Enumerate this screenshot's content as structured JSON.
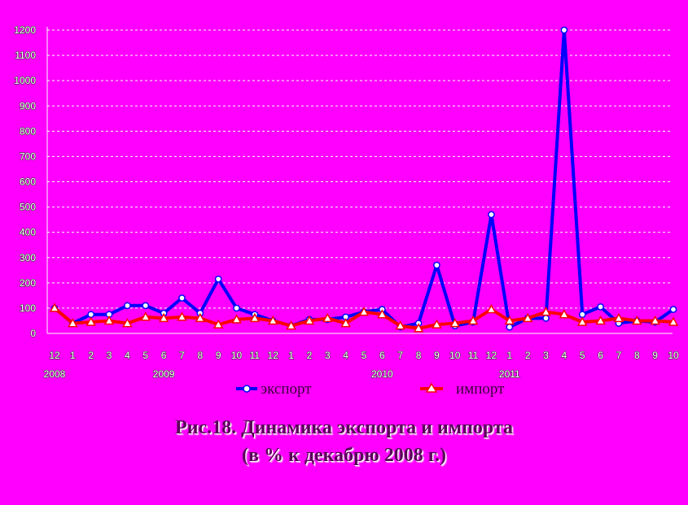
{
  "chart_data": {
    "type": "line",
    "ylim": [
      0,
      1200
    ],
    "yticks": [
      0,
      100,
      200,
      300,
      400,
      500,
      600,
      700,
      800,
      900,
      1000,
      1100,
      1200
    ],
    "x": [
      "12",
      "1",
      "2",
      "3",
      "4",
      "5",
      "6",
      "7",
      "8",
      "9",
      "10",
      "11",
      "12",
      "1",
      "2",
      "3",
      "4",
      "5",
      "6",
      "7",
      "8",
      "9",
      "10",
      "11",
      "12",
      "1",
      "2",
      "3",
      "4",
      "5",
      "6",
      "7",
      "8",
      "9",
      "10"
    ],
    "years": [
      {
        "label": "2008",
        "index": 0
      },
      {
        "label": "2009",
        "index": 6
      },
      {
        "label": "2010",
        "index": 18
      },
      {
        "label": "2011",
        "index": 25
      }
    ],
    "series": [
      {
        "name": "экспорт",
        "color": "#0000ff",
        "marker": "circle",
        "values": [
          100,
          40,
          75,
          75,
          110,
          110,
          80,
          140,
          80,
          215,
          100,
          75,
          50,
          30,
          55,
          55,
          65,
          85,
          95,
          25,
          40,
          270,
          30,
          45,
          470,
          25,
          60,
          60,
          1200,
          75,
          105,
          40,
          50,
          45,
          95
        ]
      },
      {
        "name": "импорт",
        "color": "#ff0000",
        "marker": "triangle",
        "values": [
          100,
          40,
          45,
          50,
          40,
          65,
          60,
          65,
          60,
          35,
          55,
          60,
          50,
          30,
          50,
          60,
          40,
          85,
          75,
          30,
          20,
          35,
          40,
          50,
          95,
          50,
          60,
          85,
          75,
          45,
          50,
          60,
          50,
          50,
          45
        ]
      }
    ]
  },
  "caption": {
    "line1": "Рис.18. Динамика экспорта и импорта",
    "line2": "(в % к декабрю 2008 г.)"
  }
}
